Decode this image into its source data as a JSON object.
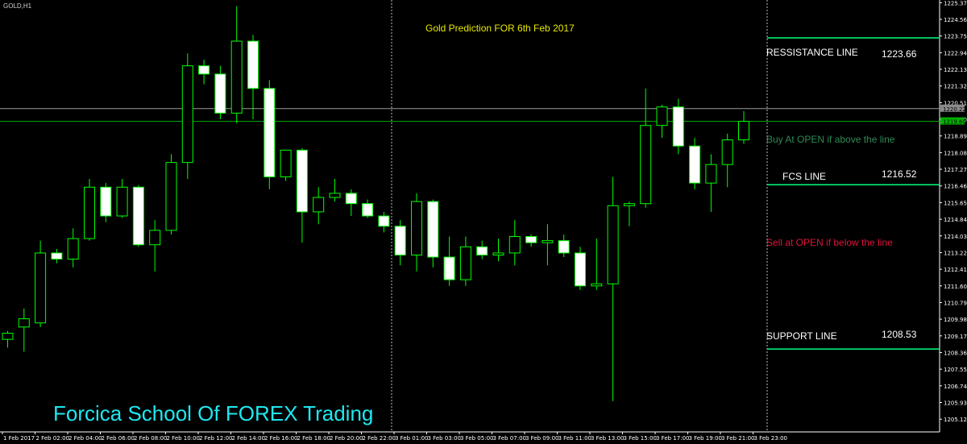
{
  "symbol_label": "GOLD,H1",
  "title": "Gold Prediction FOR 6th Feb 2017",
  "levels": {
    "resistance": {
      "label": "RESSISTANCE LINE",
      "value": "1223.66"
    },
    "fcs": {
      "label": "FCS LINE",
      "value": "1216.52"
    },
    "support": {
      "label": "SUPPORT LINE",
      "value": "1208.53"
    }
  },
  "buy_note": "Buy At OPEN if above the line",
  "sell_note": "Sell at OPEN  if below the line",
  "brand": "Forcica School Of FOREX Trading",
  "colors": {
    "background": "#000000",
    "bull_outline": "#00ff00",
    "bear_body": "#ffffff",
    "level_line": "#00ff7f",
    "title": "#e8e800",
    "brand": "#1ee8f0",
    "buy_note": "#2e8b57",
    "sell_note": "#dc143c"
  },
  "chart_data": {
    "type": "candlestick",
    "timeframe": "H1",
    "ylim": [
      1204.5,
      1225.5
    ],
    "y_ticks": [
      "1225.37",
      "1224.56",
      "1223.75",
      "1222.94",
      "1222.13",
      "1221.32",
      "1220.51",
      "1219.70",
      "1218.89",
      "1218.08",
      "1217.27",
      "1216.46",
      "1215.65",
      "1214.84",
      "1214.03",
      "1213.22",
      "1212.41",
      "1211.60",
      "1210.79",
      "1209.98",
      "1209.17",
      "1208.36",
      "1207.55",
      "1206.74",
      "1205.93",
      "1205.12"
    ],
    "price_marker_grey": "1220.22",
    "price_marker_green": "1219.60",
    "x_ticks": [
      "1 Feb 2017",
      "2 Feb 02:00",
      "2 Feb 04:00",
      "2 Feb 06:00",
      "2 Feb 08:00",
      "2 Feb 10:00",
      "2 Feb 12:00",
      "2 Feb 14:00",
      "2 Feb 16:00",
      "2 Feb 18:00",
      "2 Feb 20:00",
      "2 Feb 22:00",
      "3 Feb 01:00",
      "3 Feb 03:00",
      "3 Feb 05:00",
      "3 Feb 07:00",
      "3 Feb 09:00",
      "3 Feb 11:00",
      "3 Feb 13:00",
      "3 Feb 15:00",
      "3 Feb 17:00",
      "3 Feb 19:00",
      "3 Feb 21:00",
      "3 Feb 23:00"
    ],
    "horizontal_lines": [
      1223.66,
      1220.22,
      1219.6,
      1216.52,
      1208.53
    ],
    "candles": [
      {
        "o": 1209.0,
        "h": 1209.4,
        "l": 1208.6,
        "c": 1209.3
      },
      {
        "o": 1209.6,
        "h": 1210.5,
        "l": 1208.4,
        "c": 1210.0
      },
      {
        "o": 1209.8,
        "h": 1213.8,
        "l": 1209.6,
        "c": 1213.2
      },
      {
        "o": 1213.2,
        "h": 1213.4,
        "l": 1212.7,
        "c": 1212.9
      },
      {
        "o": 1212.9,
        "h": 1214.4,
        "l": 1212.5,
        "c": 1213.9
      },
      {
        "o": 1213.9,
        "h": 1216.8,
        "l": 1213.8,
        "c": 1216.4
      },
      {
        "o": 1216.4,
        "h": 1216.6,
        "l": 1214.7,
        "c": 1215.0
      },
      {
        "o": 1215.0,
        "h": 1216.8,
        "l": 1214.9,
        "c": 1216.4
      },
      {
        "o": 1216.4,
        "h": 1216.5,
        "l": 1213.5,
        "c": 1213.6
      },
      {
        "o": 1213.6,
        "h": 1214.8,
        "l": 1212.3,
        "c": 1214.3
      },
      {
        "o": 1214.3,
        "h": 1218.0,
        "l": 1214.1,
        "c": 1217.6
      },
      {
        "o": 1217.6,
        "h": 1222.9,
        "l": 1216.8,
        "c": 1222.3
      },
      {
        "o": 1222.3,
        "h": 1222.6,
        "l": 1221.4,
        "c": 1221.9
      },
      {
        "o": 1221.9,
        "h": 1222.3,
        "l": 1219.7,
        "c": 1220.0
      },
      {
        "o": 1220.0,
        "h": 1225.2,
        "l": 1219.5,
        "c": 1223.5
      },
      {
        "o": 1223.5,
        "h": 1223.8,
        "l": 1219.7,
        "c": 1221.2
      },
      {
        "o": 1221.2,
        "h": 1221.6,
        "l": 1216.3,
        "c": 1216.9
      },
      {
        "o": 1216.9,
        "h": 1218.2,
        "l": 1216.7,
        "c": 1218.2
      },
      {
        "o": 1218.2,
        "h": 1218.3,
        "l": 1213.7,
        "c": 1215.2
      },
      {
        "o": 1215.2,
        "h": 1216.4,
        "l": 1214.6,
        "c": 1215.9
      },
      {
        "o": 1215.9,
        "h": 1216.8,
        "l": 1215.7,
        "c": 1216.1
      },
      {
        "o": 1216.1,
        "h": 1216.3,
        "l": 1215.0,
        "c": 1215.6
      },
      {
        "o": 1215.6,
        "h": 1215.8,
        "l": 1214.9,
        "c": 1215.0
      },
      {
        "o": 1215.0,
        "h": 1215.2,
        "l": 1214.2,
        "c": 1214.5
      },
      {
        "o": 1214.5,
        "h": 1214.8,
        "l": 1212.6,
        "c": 1213.1
      },
      {
        "o": 1213.1,
        "h": 1216.1,
        "l": 1212.3,
        "c": 1215.7
      },
      {
        "o": 1215.7,
        "h": 1215.8,
        "l": 1212.5,
        "c": 1213.0
      },
      {
        "o": 1213.0,
        "h": 1214.0,
        "l": 1211.6,
        "c": 1211.9
      },
      {
        "o": 1211.9,
        "h": 1214.0,
        "l": 1211.6,
        "c": 1213.5
      },
      {
        "o": 1213.5,
        "h": 1213.8,
        "l": 1212.9,
        "c": 1213.1
      },
      {
        "o": 1213.1,
        "h": 1213.9,
        "l": 1212.8,
        "c": 1213.2
      },
      {
        "o": 1213.2,
        "h": 1214.8,
        "l": 1212.6,
        "c": 1214.0
      },
      {
        "o": 1214.0,
        "h": 1214.1,
        "l": 1213.5,
        "c": 1213.7
      },
      {
        "o": 1213.7,
        "h": 1214.6,
        "l": 1212.6,
        "c": 1213.8
      },
      {
        "o": 1213.8,
        "h": 1214.1,
        "l": 1213.0,
        "c": 1213.2
      },
      {
        "o": 1213.2,
        "h": 1213.5,
        "l": 1211.4,
        "c": 1211.6
      },
      {
        "o": 1211.6,
        "h": 1213.9,
        "l": 1211.4,
        "c": 1211.7
      },
      {
        "o": 1211.7,
        "h": 1216.9,
        "l": 1206.0,
        "c": 1215.5
      },
      {
        "o": 1215.5,
        "h": 1215.7,
        "l": 1214.5,
        "c": 1215.6
      },
      {
        "o": 1215.6,
        "h": 1221.2,
        "l": 1215.4,
        "c": 1219.4
      },
      {
        "o": 1219.4,
        "h": 1220.4,
        "l": 1218.8,
        "c": 1220.3
      },
      {
        "o": 1220.3,
        "h": 1220.7,
        "l": 1218.0,
        "c": 1218.4
      },
      {
        "o": 1218.4,
        "h": 1218.8,
        "l": 1216.3,
        "c": 1216.6
      },
      {
        "o": 1216.6,
        "h": 1218.0,
        "l": 1215.2,
        "c": 1217.5
      },
      {
        "o": 1217.5,
        "h": 1219.0,
        "l": 1216.4,
        "c": 1218.7
      },
      {
        "o": 1218.7,
        "h": 1220.1,
        "l": 1218.5,
        "c": 1219.6
      }
    ]
  }
}
